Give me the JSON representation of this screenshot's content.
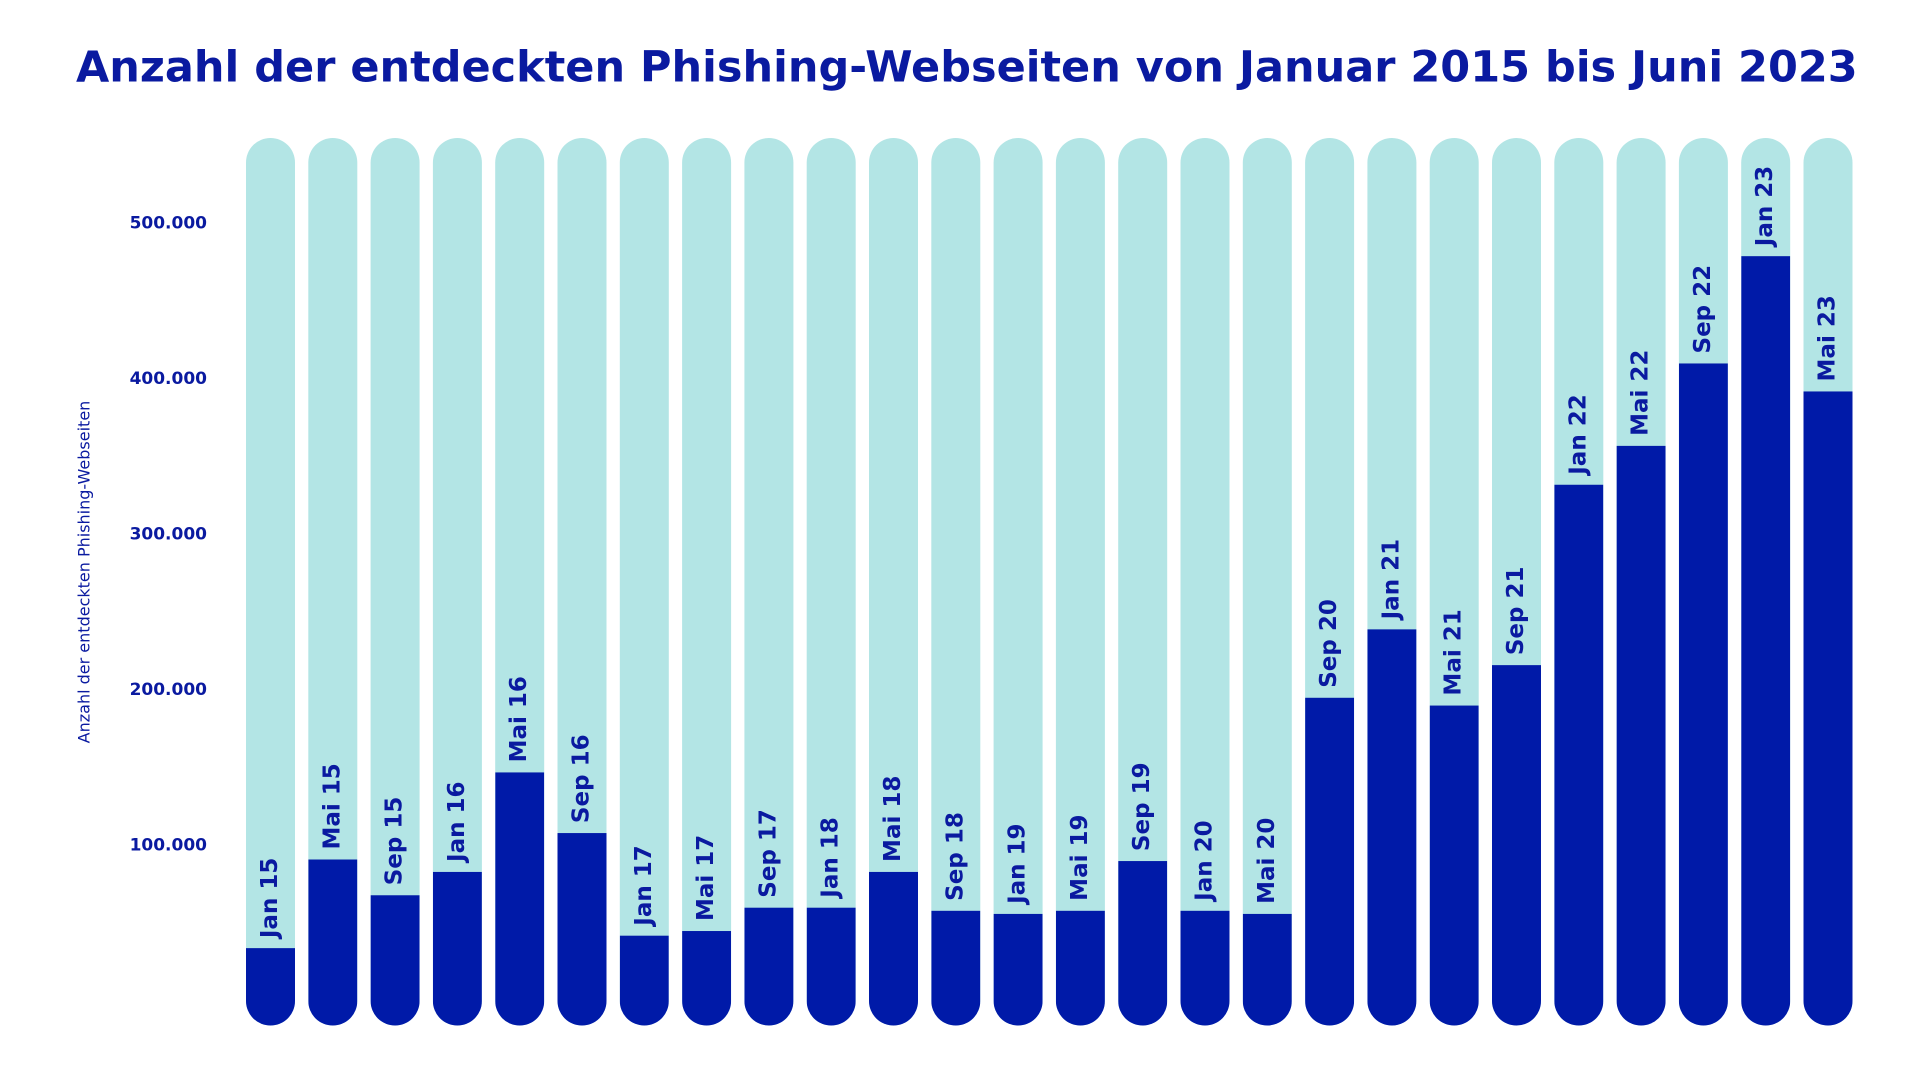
{
  "chart_data": {
    "type": "bar",
    "title": "Anzahl der entdeckten Phishing-Webseiten von Januar 2015 bis Juni 2023",
    "y_label": "Anzahl der entdeckten Phishing-Webseiten",
    "categories": [
      "Jan 15",
      "Mai 15",
      "Sep 15",
      "Jan 16",
      "Mai 16",
      "Sep 16",
      "Jan 17",
      "Mai 17",
      "Sep 17",
      "Jan 18",
      "Mai 18",
      "Sep 18",
      "Jan 19",
      "Mai 19",
      "Sep 19",
      "Jan 20",
      "Mai 20",
      "Sep 20",
      "Jan 21",
      "Mai 21",
      "Sep 21",
      "Jan 22",
      "Mai 22",
      "Sep 22",
      "Jan 23",
      "Mai 23"
    ],
    "values": [
      34000,
      91000,
      68000,
      83000,
      147000,
      108000,
      42000,
      45000,
      60000,
      60000,
      83000,
      58000,
      56000,
      58000,
      90000,
      58000,
      56000,
      195000,
      239000,
      190000,
      216000,
      332000,
      357000,
      410000,
      479000,
      392000
    ],
    "color": "#001aa8",
    "background_color": "#b3e5e5",
    "ylim": [
      0,
      555000
    ],
    "yticks": [
      {
        "value": 100000,
        "label": "100.000"
      },
      {
        "value": 200000,
        "label": "200.000"
      },
      {
        "value": 300000,
        "label": "300.000"
      },
      {
        "value": 400000,
        "label": "400.000"
      },
      {
        "value": 500000,
        "label": "500.000"
      }
    ],
    "grid": false
  }
}
